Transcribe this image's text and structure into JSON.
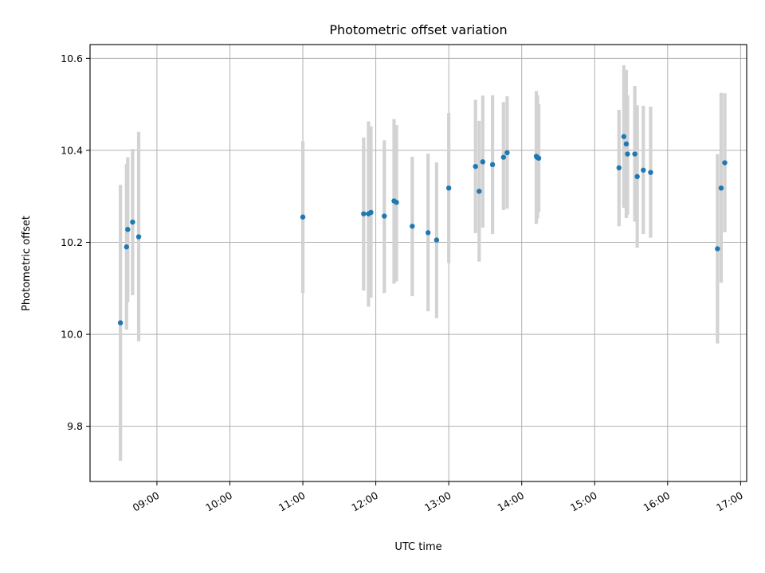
{
  "chart_data": {
    "type": "scatter",
    "title": "Photometric offset variation",
    "xlabel": "UTC time",
    "ylabel": "Photometric offset",
    "xlim": [
      "08:05",
      "17:05"
    ],
    "ylim": [
      9.68,
      10.63
    ],
    "x_ticks": [
      "09:00",
      "10:00",
      "11:00",
      "12:00",
      "13:00",
      "14:00",
      "15:00",
      "16:00",
      "17:00"
    ],
    "y_ticks": [
      9.8,
      10.0,
      10.2,
      10.4,
      10.6
    ],
    "grid": true,
    "marker_color": "#1f77b4",
    "errorbar_color": "#d3d3d3",
    "points": [
      {
        "x": "08:30",
        "y": 10.025,
        "ylow": 9.725,
        "yhigh": 10.325
      },
      {
        "x": "08:35",
        "y": 10.19,
        "ylow": 10.01,
        "yhigh": 10.37
      },
      {
        "x": "08:36",
        "y": 10.228,
        "ylow": 10.07,
        "yhigh": 10.385
      },
      {
        "x": "08:40",
        "y": 10.244,
        "ylow": 10.085,
        "yhigh": 10.403
      },
      {
        "x": "08:45",
        "y": 10.212,
        "ylow": 9.985,
        "yhigh": 10.44
      },
      {
        "x": "11:00",
        "y": 10.255,
        "ylow": 10.09,
        "yhigh": 10.42
      },
      {
        "x": "11:50",
        "y": 10.262,
        "ylow": 10.095,
        "yhigh": 10.428
      },
      {
        "x": "11:54",
        "y": 10.262,
        "ylow": 10.06,
        "yhigh": 10.463
      },
      {
        "x": "11:56",
        "y": 10.265,
        "ylow": 10.08,
        "yhigh": 10.452
      },
      {
        "x": "12:07",
        "y": 10.257,
        "ylow": 10.09,
        "yhigh": 10.422
      },
      {
        "x": "12:15",
        "y": 10.29,
        "ylow": 10.11,
        "yhigh": 10.468
      },
      {
        "x": "12:17",
        "y": 10.287,
        "ylow": 10.115,
        "yhigh": 10.455
      },
      {
        "x": "12:30",
        "y": 10.235,
        "ylow": 10.083,
        "yhigh": 10.386
      },
      {
        "x": "12:43",
        "y": 10.221,
        "ylow": 10.05,
        "yhigh": 10.393
      },
      {
        "x": "12:50",
        "y": 10.205,
        "ylow": 10.035,
        "yhigh": 10.374
      },
      {
        "x": "13:00",
        "y": 10.318,
        "ylow": 10.155,
        "yhigh": 10.481
      },
      {
        "x": "13:22",
        "y": 10.365,
        "ylow": 10.22,
        "yhigh": 10.51
      },
      {
        "x": "13:25",
        "y": 10.311,
        "ylow": 10.158,
        "yhigh": 10.464
      },
      {
        "x": "13:28",
        "y": 10.375,
        "ylow": 10.232,
        "yhigh": 10.519
      },
      {
        "x": "13:36",
        "y": 10.369,
        "ylow": 10.218,
        "yhigh": 10.52
      },
      {
        "x": "13:45",
        "y": 10.385,
        "ylow": 10.27,
        "yhigh": 10.505
      },
      {
        "x": "13:48",
        "y": 10.395,
        "ylow": 10.273,
        "yhigh": 10.518
      },
      {
        "x": "14:12",
        "y": 10.387,
        "ylow": 10.24,
        "yhigh": 10.529
      },
      {
        "x": "14:13",
        "y": 10.384,
        "ylow": 10.252,
        "yhigh": 10.52
      },
      {
        "x": "14:14",
        "y": 10.383,
        "ylow": 10.266,
        "yhigh": 10.5
      },
      {
        "x": "15:20",
        "y": 10.362,
        "ylow": 10.235,
        "yhigh": 10.488
      },
      {
        "x": "15:24",
        "y": 10.43,
        "ylow": 10.275,
        "yhigh": 10.585
      },
      {
        "x": "15:26",
        "y": 10.414,
        "ylow": 10.253,
        "yhigh": 10.575
      },
      {
        "x": "15:27",
        "y": 10.392,
        "ylow": 10.26,
        "yhigh": 10.52
      },
      {
        "x": "15:33",
        "y": 10.392,
        "ylow": 10.245,
        "yhigh": 10.54
      },
      {
        "x": "15:35",
        "y": 10.343,
        "ylow": 10.188,
        "yhigh": 10.498
      },
      {
        "x": "15:40",
        "y": 10.357,
        "ylow": 10.218,
        "yhigh": 10.497
      },
      {
        "x": "15:46",
        "y": 10.352,
        "ylow": 10.21,
        "yhigh": 10.495
      },
      {
        "x": "16:41",
        "y": 10.186,
        "ylow": 9.98,
        "yhigh": 10.392
      },
      {
        "x": "16:44",
        "y": 10.318,
        "ylow": 10.112,
        "yhigh": 10.525
      },
      {
        "x": "16:47",
        "y": 10.373,
        "ylow": 10.222,
        "yhigh": 10.524
      }
    ]
  }
}
